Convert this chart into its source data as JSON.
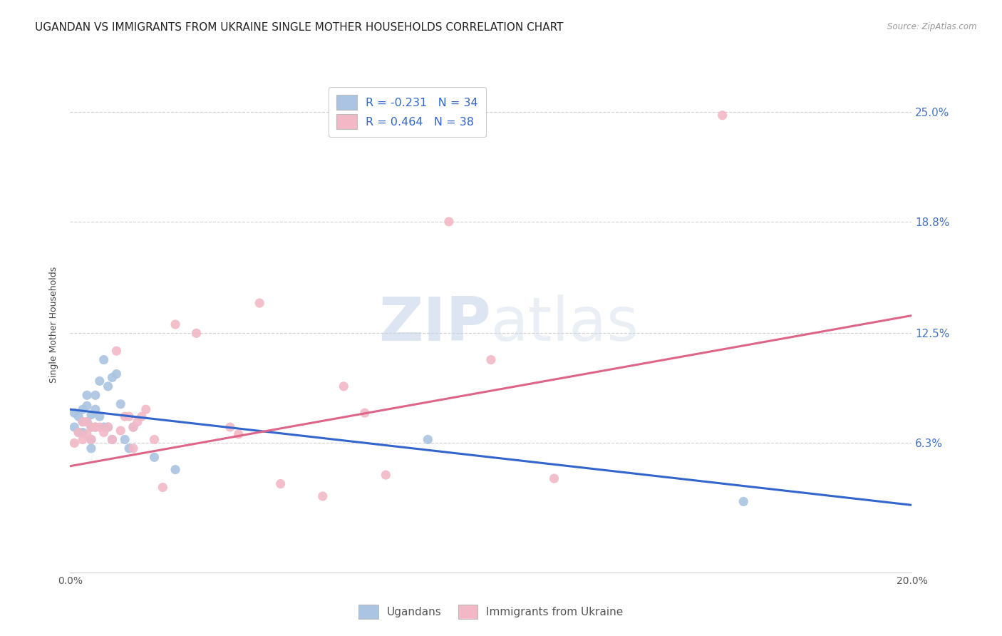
{
  "title": "UGANDAN VS IMMIGRANTS FROM UKRAINE SINGLE MOTHER HOUSEHOLDS CORRELATION CHART",
  "source": "Source: ZipAtlas.com",
  "ylabel": "Single Mother Households",
  "xlim": [
    0,
    0.2
  ],
  "ylim": [
    -0.01,
    0.27
  ],
  "xticks": [
    0.0,
    0.05,
    0.1,
    0.15,
    0.2
  ],
  "xtick_labels": [
    "0.0%",
    "",
    "",
    "",
    "20.0%"
  ],
  "ytick_labels_right": [
    "6.3%",
    "12.5%",
    "18.8%",
    "25.0%"
  ],
  "ytick_positions_right": [
    0.063,
    0.125,
    0.188,
    0.25
  ],
  "blue_color": "#aac4e2",
  "pink_color": "#f2b8c6",
  "blue_line_color": "#3366cc",
  "pink_line_color": "#dd6688",
  "legend_blue_label": "R = -0.231   N = 34",
  "legend_pink_label": "R = 0.464   N = 38",
  "legend_title_blue": "Ugandans",
  "legend_title_pink": "Immigrants from Ukraine",
  "title_fontsize": 11,
  "axis_label_fontsize": 9,
  "tick_fontsize": 10,
  "blue_scatter_x": [
    0.001,
    0.001,
    0.002,
    0.002,
    0.003,
    0.003,
    0.003,
    0.004,
    0.004,
    0.004,
    0.005,
    0.005,
    0.005,
    0.005,
    0.006,
    0.006,
    0.006,
    0.007,
    0.007,
    0.008,
    0.008,
    0.009,
    0.009,
    0.01,
    0.01,
    0.011,
    0.012,
    0.013,
    0.014,
    0.015,
    0.02,
    0.025,
    0.085,
    0.16
  ],
  "blue_scatter_y": [
    0.08,
    0.072,
    0.078,
    0.069,
    0.082,
    0.075,
    0.069,
    0.09,
    0.084,
    0.075,
    0.079,
    0.072,
    0.065,
    0.06,
    0.09,
    0.082,
    0.072,
    0.098,
    0.078,
    0.11,
    0.072,
    0.095,
    0.072,
    0.1,
    0.065,
    0.102,
    0.085,
    0.065,
    0.06,
    0.072,
    0.055,
    0.048,
    0.065,
    0.03
  ],
  "pink_scatter_x": [
    0.001,
    0.002,
    0.003,
    0.003,
    0.004,
    0.004,
    0.005,
    0.005,
    0.006,
    0.007,
    0.008,
    0.009,
    0.01,
    0.011,
    0.012,
    0.013,
    0.014,
    0.015,
    0.015,
    0.016,
    0.017,
    0.018,
    0.02,
    0.022,
    0.025,
    0.03,
    0.038,
    0.04,
    0.045,
    0.05,
    0.06,
    0.065,
    0.07,
    0.075,
    0.09,
    0.1,
    0.115,
    0.155
  ],
  "pink_scatter_y": [
    0.063,
    0.069,
    0.075,
    0.065,
    0.075,
    0.068,
    0.072,
    0.065,
    0.072,
    0.072,
    0.069,
    0.072,
    0.065,
    0.115,
    0.07,
    0.078,
    0.078,
    0.06,
    0.072,
    0.075,
    0.078,
    0.082,
    0.065,
    0.038,
    0.13,
    0.125,
    0.072,
    0.068,
    0.142,
    0.04,
    0.033,
    0.095,
    0.08,
    0.045,
    0.188,
    0.11,
    0.043,
    0.248
  ],
  "blue_trend_x": [
    0.0,
    0.2
  ],
  "blue_trend_y": [
    0.082,
    0.028
  ],
  "pink_trend_x": [
    0.0,
    0.2
  ],
  "pink_trend_y": [
    0.05,
    0.135
  ]
}
